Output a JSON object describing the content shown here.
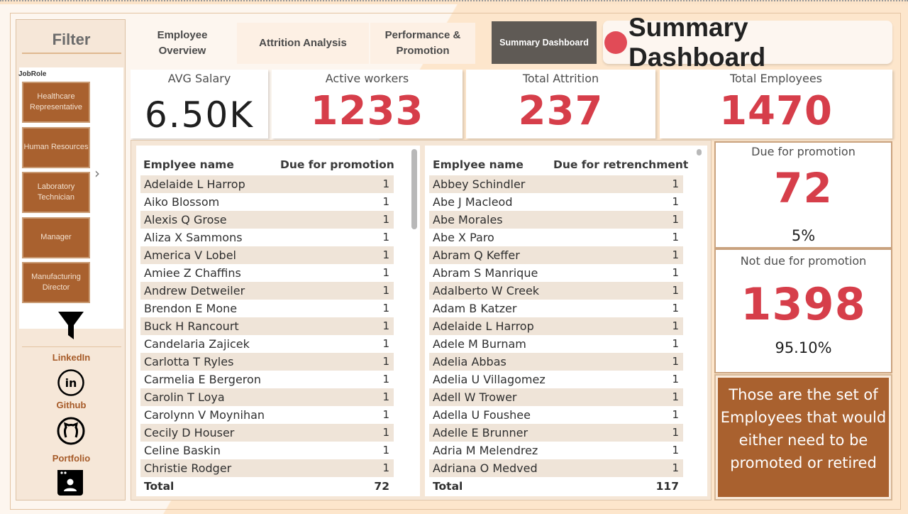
{
  "sidebar": {
    "title": "Filter",
    "slicer_label": "JobRole",
    "job_roles": [
      "Healthcare Representative",
      "Human Resources",
      "Laboratory Technician",
      "Manager",
      "Manufacturing Director"
    ],
    "socials": [
      "LinkedIn",
      "Github",
      "Portfolio"
    ]
  },
  "tabs": {
    "employee_overview": "Employee Overview",
    "attrition_analysis": "Attrition Analysis",
    "performance_promotion": "Performance & Promotion",
    "summary_dashboard": "Summary Dashboard"
  },
  "page_title": "Summary Dashboard",
  "kpis": {
    "avg_salary": {
      "label": "AVG Salary",
      "value": "6.50K"
    },
    "active_workers": {
      "label": "Active workers",
      "value": "1233"
    },
    "total_attrition": {
      "label": "Total Attrition",
      "value": "237"
    },
    "total_employees": {
      "label": "Total Employees",
      "value": "1470"
    }
  },
  "promotion_table": {
    "col_name": "Emplyee name",
    "col_value": "Due for promotion",
    "rows": [
      [
        "Adelaide L Harrop",
        "1"
      ],
      [
        "Aiko Blossom",
        "1"
      ],
      [
        "Alexis Q Grose",
        "1"
      ],
      [
        "Aliza X Sammons",
        "1"
      ],
      [
        "America V Lobel",
        "1"
      ],
      [
        "Amiee Z Chaffins",
        "1"
      ],
      [
        "Andrew Detweiler",
        "1"
      ],
      [
        "Brendon E Mone",
        "1"
      ],
      [
        "Buck H Rancourt",
        "1"
      ],
      [
        "Candelaria Zajicek",
        "1"
      ],
      [
        "Carlotta T Ryles",
        "1"
      ],
      [
        "Carmelia E Bergeron",
        "1"
      ],
      [
        "Carolin T Loya",
        "1"
      ],
      [
        "Carolynn V Moynihan",
        "1"
      ],
      [
        "Cecily D Houser",
        "1"
      ],
      [
        "Celine Baskin",
        "1"
      ],
      [
        "Christie Rodger",
        "1"
      ]
    ],
    "total_label": "Total",
    "total_value": "72"
  },
  "retrenchment_table": {
    "col_name": "Emplyee name",
    "col_value": "Due for retrenchment",
    "rows": [
      [
        "Abbey Schindler",
        "1"
      ],
      [
        "Abe J Macleod",
        "1"
      ],
      [
        "Abe Morales",
        "1"
      ],
      [
        "Abe X Paro",
        "1"
      ],
      [
        "Abram Q Keffer",
        "1"
      ],
      [
        "Abram S Manrique",
        "1"
      ],
      [
        "Adalberto W Creek",
        "1"
      ],
      [
        "Adam B Katzer",
        "1"
      ],
      [
        "Adelaide L Harrop",
        "1"
      ],
      [
        "Adele M Burnam",
        "1"
      ],
      [
        "Adelia Abbas",
        "1"
      ],
      [
        "Adelia U Villagomez",
        "1"
      ],
      [
        "Adell W Trower",
        "1"
      ],
      [
        "Adella U Foushee",
        "1"
      ],
      [
        "Adelle E Brunner",
        "1"
      ],
      [
        "Adria M Melendrez",
        "1"
      ],
      [
        "Adriana O Medved",
        "1"
      ]
    ],
    "total_label": "Total",
    "total_value": "117"
  },
  "due_promotion": {
    "label": "Due for promotion",
    "value": "72",
    "pct": "5%"
  },
  "not_due_promotion": {
    "label": "Not due for promotion",
    "value": "1398",
    "pct": "95.10%"
  },
  "note": "Those are the set of Employees that would either need to be promoted or retired",
  "colors": {
    "accent_red": "#d63e4a",
    "brown": "#a9612f",
    "tab_active": "#5f5a55"
  }
}
